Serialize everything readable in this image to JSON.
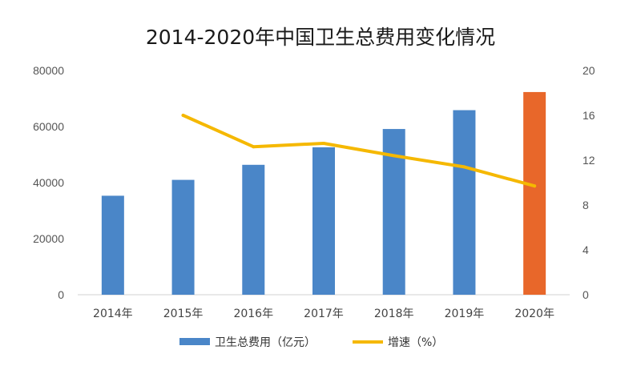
{
  "chart_data": {
    "type": "bar",
    "title": "2014-2020年中国卫生总费用变化情况",
    "categories": [
      "2014年",
      "2015年",
      "2016年",
      "2017年",
      "2018年",
      "2019年",
      "2020年"
    ],
    "series": [
      {
        "name": "卫生总费用（亿元）",
        "type": "bar",
        "axis": "left",
        "color": "#4a86c8",
        "highlight_color": "#e8672a",
        "highlight_index": 6,
        "values": [
          35312,
          40975,
          46345,
          52598,
          59122,
          65841,
          72306
        ]
      },
      {
        "name": "增速（%）",
        "type": "line",
        "axis": "right",
        "color": "#f5b800",
        "values": [
          null,
          16.0,
          13.2,
          13.5,
          12.4,
          11.4,
          9.7
        ]
      }
    ],
    "y_left": {
      "min": 0,
      "max": 80000,
      "ticks": [
        "0",
        "20000",
        "40000",
        "60000",
        "80000"
      ]
    },
    "y_right": {
      "min": 0,
      "max": 20,
      "ticks": [
        "0",
        "4",
        "8",
        "12",
        "16",
        "20"
      ]
    },
    "grid": false,
    "legend_position": "bottom"
  }
}
